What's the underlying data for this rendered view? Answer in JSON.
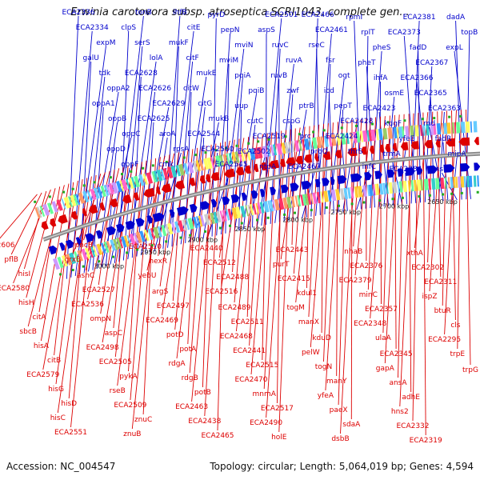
{
  "title": "Erwinia carotovora subsp. atroseptica SCRI1043, complete gen...",
  "accession": "Accession: NC_004547",
  "summary": "Topology: circular; Length: 5,064,019 bp; Genes: 4,594",
  "colors": {
    "forward": "#0000cc",
    "reverse": "#dd0000",
    "backbone": "#888888",
    "rna": "#22aa22",
    "highlight": "#88aaff",
    "highlight_red": "#ff88cc"
  },
  "kbp_ticks": [
    "3000 kbp",
    "2950 kbp",
    "2900 kbp",
    "2850 kbp",
    "2800 kbp",
    "2750 kbp",
    "2700 kbp",
    "2650 kbp"
  ],
  "top_labels": [
    "ECA2336",
    "ECA2334",
    "expM",
    "galU",
    "tdk",
    "oppA2",
    "oppA1",
    "oppB",
    "oppC",
    "oppD",
    "oppF",
    "tonB",
    "clpS",
    "serS",
    "lolA",
    "ECA2628",
    "ECA2626",
    "ECA2629",
    "ECA2625",
    "aroA",
    "rpsA",
    "cmk",
    "ihfB",
    "citE",
    "mukF",
    "citF",
    "mukE",
    "citW",
    "citG",
    "mukB",
    "ECA2544",
    "ECA2560",
    "ECA2545",
    "pyrD",
    "pepN",
    "mviN",
    "mviM",
    "pqiA",
    "pqiB",
    "uup",
    "cutC",
    "ECA2519",
    "ECA2502",
    "ntpA",
    "ECA2501",
    "aspS",
    "ruvC",
    "ruvA",
    "ruvB",
    "zwf",
    "ptrB",
    "cspG",
    "prc",
    "proQ",
    "ECA2467",
    "ECA2466",
    "ECA2461",
    "rseC",
    "fsr",
    "ogt",
    "icd",
    "pepT",
    "ECA2428",
    "ECA2424",
    "thrS",
    "infC",
    "rpmI",
    "rplT",
    "pheS",
    "pheT",
    "ihfA",
    "osmE",
    "ECA2423",
    "kdgF",
    "yfeE",
    "trmA",
    "ECA2384",
    "ECA2381",
    "ECA2373",
    "fadD",
    "ECA2367",
    "ECA2366",
    "ECA2365",
    "ECA2363",
    "rnd",
    "fadR",
    "mipA",
    "msrB",
    "dadA",
    "topB",
    "expL"
  ],
  "bottom_labels": [
    "ECA2606",
    "pflB",
    "hisI",
    "ECA2580",
    "hisH",
    "citA",
    "sbcB",
    "hisA",
    "citB",
    "ECA2579",
    "hisG",
    "hisD",
    "hisC",
    "ECA2551",
    "pncB",
    "grxB",
    "asnC",
    "ECA2527",
    "ECA2536",
    "ompN",
    "aspC",
    "ECA2498",
    "ECA2505",
    "pykA",
    "rseB",
    "ECA2509",
    "znuC",
    "znuB",
    "ECA2510",
    "hexR",
    "yebU",
    "argS",
    "ECA2497",
    "ECA2469",
    "potD",
    "potA",
    "rdgA",
    "rdgB",
    "potB",
    "ECA2463",
    "ECA2438",
    "ECA2465",
    "ECA2440",
    "ECA2512",
    "ECA2488",
    "ECA2516",
    "ECA2489",
    "ECA2511",
    "ECA2468",
    "ECA2441",
    "ECA2515",
    "ECA2470",
    "mnmA",
    "ECA2517",
    "ECA2490",
    "holE",
    "ECA2443",
    "purT",
    "ECA2415",
    "kdul1",
    "togM",
    "manX",
    "kduD",
    "pelW",
    "togN",
    "manY",
    "yfeA",
    "paeX",
    "sdaA",
    "dsbB",
    "nhaB",
    "ECA2376",
    "ECA2379",
    "minC",
    "ECA2357",
    "ECA2348",
    "ulaA",
    "ECA2345",
    "gapA",
    "ansA",
    "adhE",
    "hns2",
    "ECA2332",
    "ECA2319",
    "xthA",
    "ECA2302",
    "ECA2311",
    "ispZ",
    "btuR",
    "cls",
    "ECA2295",
    "trpE",
    "trpG"
  ]
}
